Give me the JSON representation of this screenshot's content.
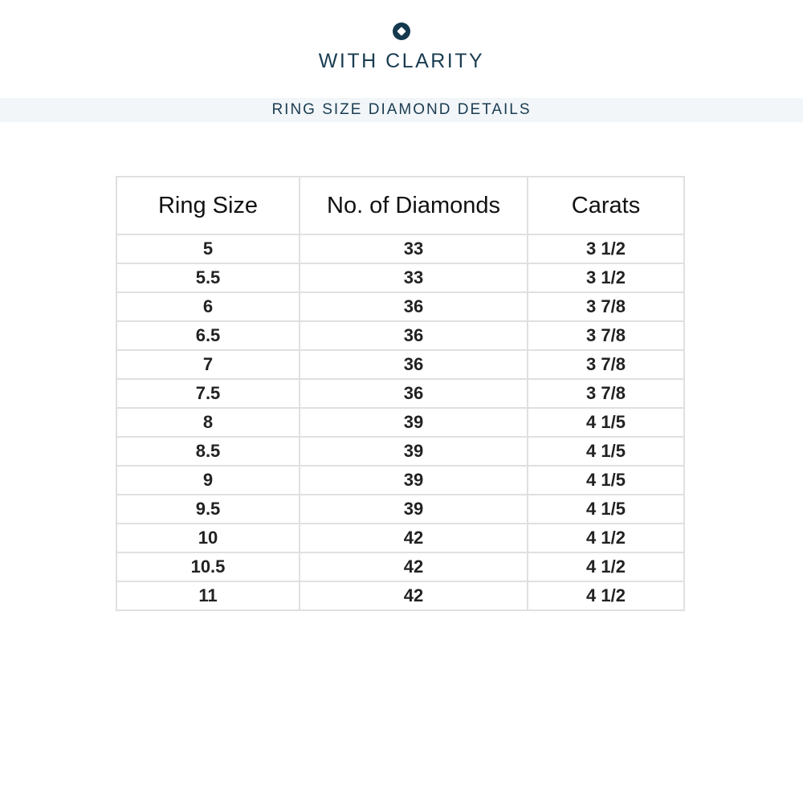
{
  "header": {
    "brand": "WITH CLARITY",
    "logo_icon": "diamond-circle-icon",
    "subtitle": "RING SIZE DIAMOND DETAILS"
  },
  "colors": {
    "brand": "#1a3c51",
    "band": "#f2f6f9",
    "grid": "#e0e0e0"
  },
  "table": {
    "columns": [
      "Ring Size",
      "No. of Diamonds",
      "Carats"
    ],
    "rows": [
      [
        "5",
        "33",
        "3 1/2"
      ],
      [
        "5.5",
        "33",
        "3 1/2"
      ],
      [
        "6",
        "36",
        "3 7/8"
      ],
      [
        "6.5",
        "36",
        "3 7/8"
      ],
      [
        "7",
        "36",
        "3 7/8"
      ],
      [
        "7.5",
        "36",
        "3 7/8"
      ],
      [
        "8",
        "39",
        "4 1/5"
      ],
      [
        "8.5",
        "39",
        "4 1/5"
      ],
      [
        "9",
        "39",
        "4 1/5"
      ],
      [
        "9.5",
        "39",
        "4 1/5"
      ],
      [
        "10",
        "42",
        "4 1/2"
      ],
      [
        "10.5",
        "42",
        "4 1/2"
      ],
      [
        "11",
        "42",
        "4 1/2"
      ]
    ]
  }
}
